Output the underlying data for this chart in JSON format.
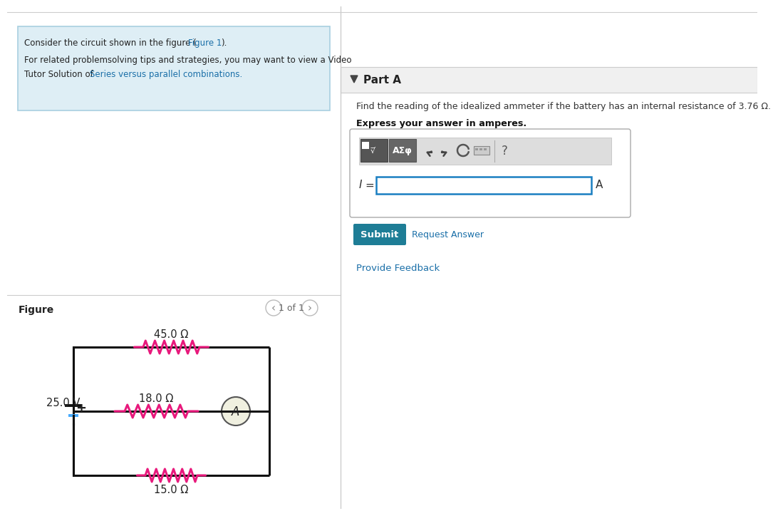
{
  "bg_color": "#ffffff",
  "left_panel_bg": "#deeef5",
  "left_panel_border": "#a8cfe0",
  "link_color": "#1a6fa8",
  "figure_label": "Figure",
  "nav_text": "1 of 1",
  "part_a_label": "Part A",
  "question_text": "Find the reading of the idealized ammeter if the battery has an internal resistance of 3.76 Ω.",
  "express_text": "Express your answer in amperes.",
  "i_label": "I =",
  "a_label": "A",
  "submit_text": "Submit",
  "request_text": "Request Answer",
  "feedback_text": "Provide Feedback",
  "submit_bg": "#1e7d96",
  "submit_text_color": "#ffffff",
  "divider_color": "#cccccc",
  "resistor_color": "#e8197c",
  "battery_color": "#44aaff",
  "wire_color": "#111111",
  "ammeter_bg": "#f0f0e0",
  "r_top": "45.0 Ω",
  "r_mid": "18.0 Ω",
  "r_bot": "15.0 Ω",
  "v_label": "25.0 V",
  "plus_label": "+",
  "toolbar_bg": "#888888",
  "btn1_bg": "#666666",
  "btn2_bg": "#777777"
}
